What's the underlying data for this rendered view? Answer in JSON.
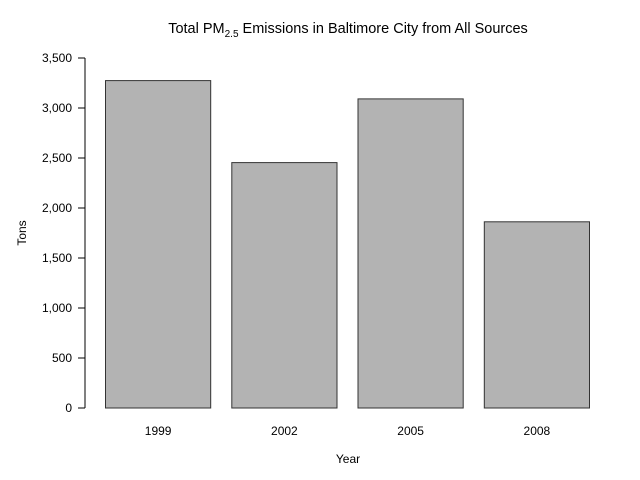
{
  "chart_data": {
    "type": "bar",
    "title": {
      "prefix": "Total PM",
      "subscript": "2.5",
      "suffix": " Emissions in Baltimore City from All Sources"
    },
    "xlabel": "Year",
    "ylabel": "Tons",
    "categories": [
      "1999",
      "2002",
      "2005",
      "2008"
    ],
    "values": [
      3274,
      2454,
      3091,
      1862
    ],
    "ylim": [
      0,
      3500
    ],
    "yticks": [
      0,
      500,
      1000,
      1500,
      2000,
      2500,
      3000,
      3500
    ],
    "ytick_labels": [
      "0",
      "500",
      "1,000",
      "1,500",
      "2,000",
      "2,500",
      "3,000",
      "3,500"
    ],
    "grid": false,
    "legend": "none",
    "bar_fill": "#b3b3b3",
    "bar_stroke": "#333333"
  }
}
